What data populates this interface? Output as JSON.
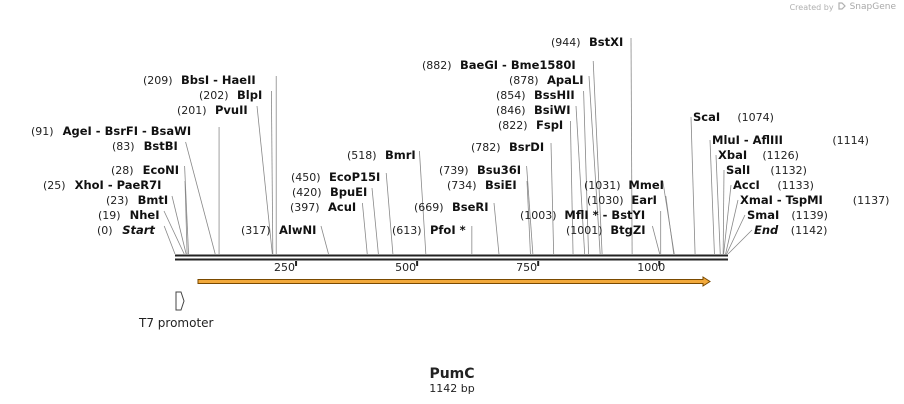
{
  "watermark": {
    "prefix": "Created by",
    "brand": "SnapGene"
  },
  "map": {
    "name": "PumC",
    "length_label": "1142 bp",
    "length": 1142,
    "ticks": [
      "250",
      "500",
      "750",
      "1000"
    ],
    "tick_values": [
      250,
      500,
      750,
      1000
    ],
    "feature_label": "T7 promoter"
  },
  "sites": [
    {
      "pos": "(0)",
      "name": "Start",
      "italic": true,
      "bp": 0
    },
    {
      "pos": "(19)",
      "name": "NheI",
      "bp": 19
    },
    {
      "pos": "(23)",
      "name": "BmtI",
      "bp": 23
    },
    {
      "pos": "(25)",
      "name": "XhoI",
      "name2": "PaeR7I",
      "bp": 25
    },
    {
      "pos": "(28)",
      "name": "EcoNI",
      "bp": 28
    },
    {
      "pos": "(83)",
      "name": "BstBI",
      "bp": 83
    },
    {
      "pos": "(91)",
      "name": "AgeI",
      "name2": "BsrFI",
      "name3": "BsaWI",
      "bp": 91
    },
    {
      "pos": "(201)",
      "name": "PvuII",
      "bp": 201
    },
    {
      "pos": "(202)",
      "name": "BlpI",
      "bp": 202
    },
    {
      "pos": "(209)",
      "name": "BbsI",
      "name2": "HaeII",
      "bp": 209
    },
    {
      "pos": "(317)",
      "name": "AlwNI",
      "bp": 317
    },
    {
      "pos": "(397)",
      "name": "AcuI",
      "bp": 397
    },
    {
      "pos": "(420)",
      "name": "BpuEI",
      "bp": 420
    },
    {
      "pos": "(450)",
      "name": "EcoP15I",
      "bp": 450
    },
    {
      "pos": "(518)",
      "name": "BmrI",
      "bp": 518
    },
    {
      "pos": "(613)",
      "name": "PfoI *",
      "bp": 613
    },
    {
      "pos": "(669)",
      "name": "BseRI",
      "bp": 669
    },
    {
      "pos": "(734)",
      "name": "BsiEI",
      "bp": 734
    },
    {
      "pos": "(739)",
      "name": "Bsu36I",
      "bp": 739
    },
    {
      "pos": "(782)",
      "name": "BsrDI",
      "bp": 782
    },
    {
      "pos": "(822)",
      "name": "FspI",
      "bp": 822
    },
    {
      "pos": "(846)",
      "name": "BsiWI",
      "bp": 846
    },
    {
      "pos": "(854)",
      "name": "BssHII",
      "bp": 854
    },
    {
      "pos": "(878)",
      "name": "ApaLI",
      "bp": 878
    },
    {
      "pos": "(882)",
      "name": "BaeGI",
      "name2": "Bme1580I",
      "bp": 882
    },
    {
      "pos": "(944)",
      "name": "BstXI",
      "bp": 944
    },
    {
      "pos": "(1001)",
      "name": "BtgZI",
      "bp": 1001
    },
    {
      "pos": "(1003)",
      "name": "MflI *",
      "name2": "BstYI",
      "bp": 1003
    },
    {
      "pos": "(1030)",
      "name": "EarI",
      "bp": 1030
    },
    {
      "pos": "(1031)",
      "name": "MmeI",
      "bp": 1031
    },
    {
      "pos": "(1074)",
      "name": "ScaI",
      "bp": 1074
    },
    {
      "pos": "(1114)",
      "name": "MluI",
      "name2": "AflIII",
      "bp": 1114
    },
    {
      "pos": "(1126)",
      "name": "XbaI",
      "bp": 1126
    },
    {
      "pos": "(1132)",
      "name": "SalI",
      "bp": 1132
    },
    {
      "pos": "(1133)",
      "name": "AccI",
      "bp": 1133
    },
    {
      "pos": "(1137)",
      "name": "XmaI",
      "name2": "TspMI",
      "bp": 1137
    },
    {
      "pos": "(1139)",
      "name": "SmaI",
      "bp": 1139
    },
    {
      "pos": "(1142)",
      "name": "End",
      "italic": true,
      "bp": 1142
    }
  ],
  "colors": {
    "orf_fill": "#f2a93b",
    "orf_stroke": "#7a4a00",
    "backbone": "#222222",
    "leader": "#777777"
  }
}
